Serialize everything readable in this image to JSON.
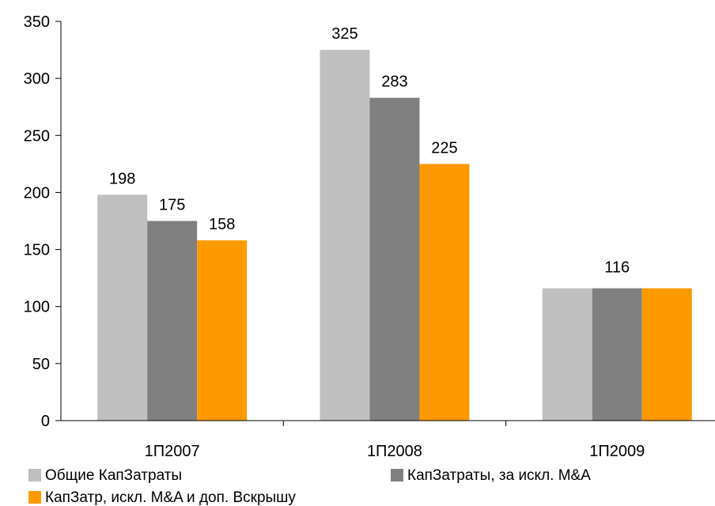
{
  "chart_data": {
    "type": "bar",
    "title": "",
    "xlabel": "",
    "ylabel": "",
    "ylim": [
      0,
      350
    ],
    "yticks": [
      0,
      50,
      100,
      150,
      200,
      250,
      300,
      350
    ],
    "grid": false,
    "legend_position": "bottom",
    "categories": [
      "1П2007",
      "1П2008",
      "1П2009"
    ],
    "series": [
      {
        "name": "Общие КапЗатраты",
        "color": "#c0c0c0",
        "values": [
          198,
          325,
          116
        ]
      },
      {
        "name": "КапЗатраты, за искл. M&A",
        "color": "#808080",
        "values": [
          175,
          283,
          116
        ]
      },
      {
        "name": "КапЗатр, искл. M&A и доп. Вскрышу",
        "color": "#ff9900",
        "values": [
          158,
          225,
          116
        ]
      }
    ],
    "data_labels": [
      [
        "198",
        "175",
        "158"
      ],
      [
        "325",
        "283",
        "225"
      ],
      [
        "116"
      ]
    ]
  }
}
